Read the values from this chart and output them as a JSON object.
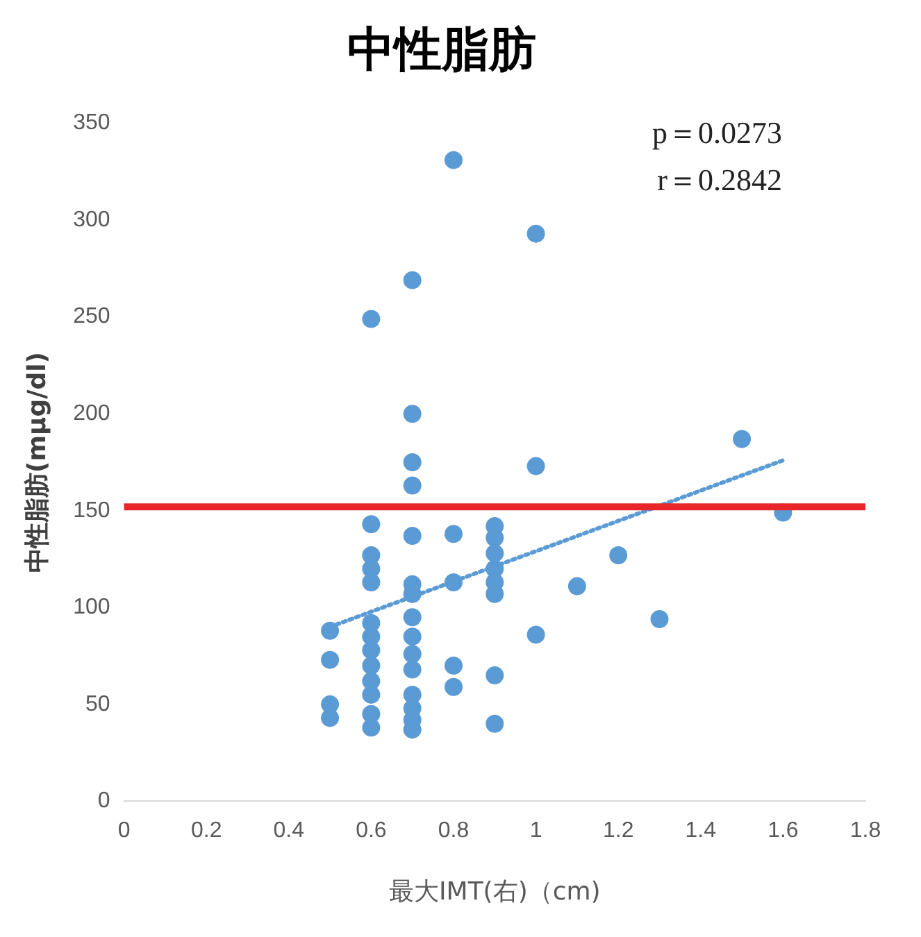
{
  "chart_data": {
    "type": "scatter",
    "title": "中性脂肪",
    "xlabel": "最大IMT(右)（cm)",
    "ylabel": "中性脂肪(mμg/dl)",
    "xlim": [
      0,
      1.8
    ],
    "xticks": [
      0,
      0.2,
      0.4,
      0.6,
      0.8,
      1,
      1.2,
      1.4,
      1.6,
      1.8
    ],
    "ylim": [
      0,
      350
    ],
    "yticks": [
      0,
      50,
      100,
      150,
      200,
      250,
      300,
      350
    ],
    "grid": false,
    "legend": false,
    "marker": "circle",
    "series": [
      {
        "type": "scatter",
        "color": "#5b9bd5",
        "x": [
          0.5,
          0.5,
          0.5,
          0.5,
          0.6,
          0.6,
          0.6,
          0.6,
          0.6,
          0.6,
          0.6,
          0.6,
          0.6,
          0.6,
          0.6,
          0.6,
          0.6,
          0.7,
          0.7,
          0.7,
          0.7,
          0.7,
          0.7,
          0.7,
          0.7,
          0.7,
          0.7,
          0.7,
          0.7,
          0.7,
          0.7,
          0.7,
          0.8,
          0.8,
          0.8,
          0.8,
          0.8,
          0.9,
          0.9,
          0.9,
          0.9,
          0.9,
          0.9,
          0.9,
          0.9,
          1,
          1,
          1,
          1.1,
          1.2,
          1.3,
          1.5,
          1.6
        ],
        "values": [
          88,
          73,
          50,
          43,
          249,
          143,
          127,
          120,
          113,
          92,
          85,
          78,
          70,
          62,
          55,
          45,
          38,
          269,
          200,
          175,
          163,
          137,
          112,
          107,
          95,
          85,
          76,
          68,
          55,
          48,
          42,
          37,
          331,
          138,
          113,
          70,
          59,
          142,
          136,
          128,
          120,
          113,
          107,
          65,
          40,
          293,
          173,
          86,
          111,
          127,
          94,
          187,
          149
        ]
      },
      {
        "type": "line",
        "color": "#5b9bd5",
        "line_style": "dotted",
        "marker": "none",
        "x": [
          0.5,
          1.6
        ],
        "values": [
          90,
          176
        ]
      }
    ],
    "ref_lines": [
      {
        "axis": "y",
        "value": 152,
        "color": "#e8262a",
        "line_style": "solid"
      }
    ],
    "annotations": [
      "p＝0.0273",
      "r＝0.2842"
    ]
  }
}
